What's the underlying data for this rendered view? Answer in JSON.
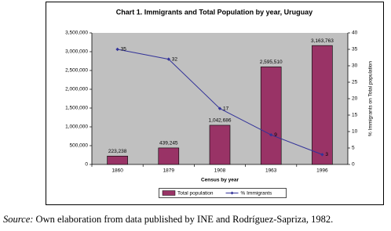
{
  "chart_data": {
    "type": "bar",
    "title": "Chart 1. Immigrants and Total Population by year, Uruguay",
    "categories": [
      "1860",
      "1879",
      "1908",
      "1963",
      "1996"
    ],
    "x_label": "Census by year",
    "y2_label": "% Immigrants on Total population",
    "series": [
      {
        "name": "Total population",
        "color": "#993366",
        "values": [
          223238,
          439245,
          1042686,
          2595510,
          3163763
        ],
        "value_labels": [
          "223,238",
          "439,245",
          "1,042,686",
          "2,595,510",
          "3,163,763"
        ]
      },
      {
        "name": "% Immigrants",
        "type": "line",
        "axis": "y2",
        "color": "#333399",
        "values": [
          35,
          32,
          17,
          9,
          3
        ]
      }
    ],
    "ylim": [
      0,
      3500000
    ],
    "yticks": [
      {
        "value": 0,
        "label": "0"
      },
      {
        "value": 500000,
        "label": "500,000"
      },
      {
        "value": 1000000,
        "label": "1,000,000"
      },
      {
        "value": 1500000,
        "label": "1,500,000"
      },
      {
        "value": 2000000,
        "label": "2,000,000"
      },
      {
        "value": 2500000,
        "label": "2,500,000"
      },
      {
        "value": 3000000,
        "label": "3,000,000"
      },
      {
        "value": 3500000,
        "label": "3,500,000"
      }
    ],
    "y2lim": [
      0,
      40
    ],
    "y2ticks": [
      0,
      5,
      10,
      15,
      20,
      25,
      30,
      35,
      40
    ],
    "legend": "bottom"
  },
  "caption": {
    "label": "Source:",
    "text": "Own elaboration from data published by INE and Rodríguez-Sapriza, 1982."
  }
}
